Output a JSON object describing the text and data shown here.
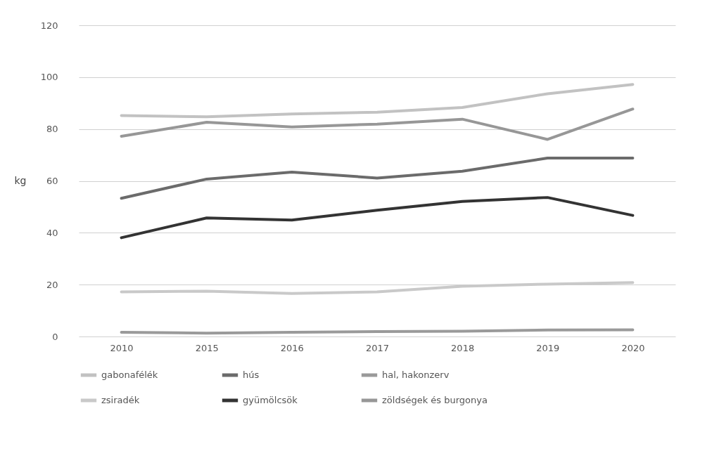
{
  "chart_data": {
    "type": "line",
    "ylabel": "kg",
    "categories": [
      "2010",
      "2015",
      "2016",
      "2017",
      "2018",
      "2019",
      "2020"
    ],
    "ylim": [
      0,
      120
    ],
    "yticks": [
      0,
      20,
      40,
      60,
      80,
      100,
      120
    ],
    "grid": "y",
    "legend": "bottom",
    "marker": "none",
    "line_style": "solid",
    "series": [
      {
        "name": "gabonafélék",
        "color": "#c2c2c2",
        "values": [
          85.2,
          84.7,
          85.8,
          86.5,
          88.3,
          93.6,
          97.2
        ]
      },
      {
        "name": "hús",
        "color": "#6b6b6b",
        "values": [
          53.3,
          60.7,
          63.4,
          61.1,
          63.7,
          68.8,
          68.8
        ]
      },
      {
        "name": "hal, hakonzerv",
        "color": "#9a9a9a",
        "values": [
          1.6,
          1.3,
          1.6,
          1.9,
          2.0,
          2.5,
          2.6
        ]
      },
      {
        "name": "zsiradék",
        "color": "#c9c9c9",
        "values": [
          17.2,
          17.5,
          16.6,
          17.2,
          19.4,
          20.2,
          20.8
        ]
      },
      {
        "name": "gyümölcsök",
        "color": "#333333",
        "values": [
          38.1,
          45.7,
          44.9,
          48.7,
          52.1,
          53.6,
          46.7
        ]
      },
      {
        "name": "zöldségek és burgonya",
        "color": "#979797",
        "values": [
          77.2,
          82.6,
          80.8,
          81.9,
          83.8,
          76.0,
          87.7
        ]
      }
    ]
  }
}
